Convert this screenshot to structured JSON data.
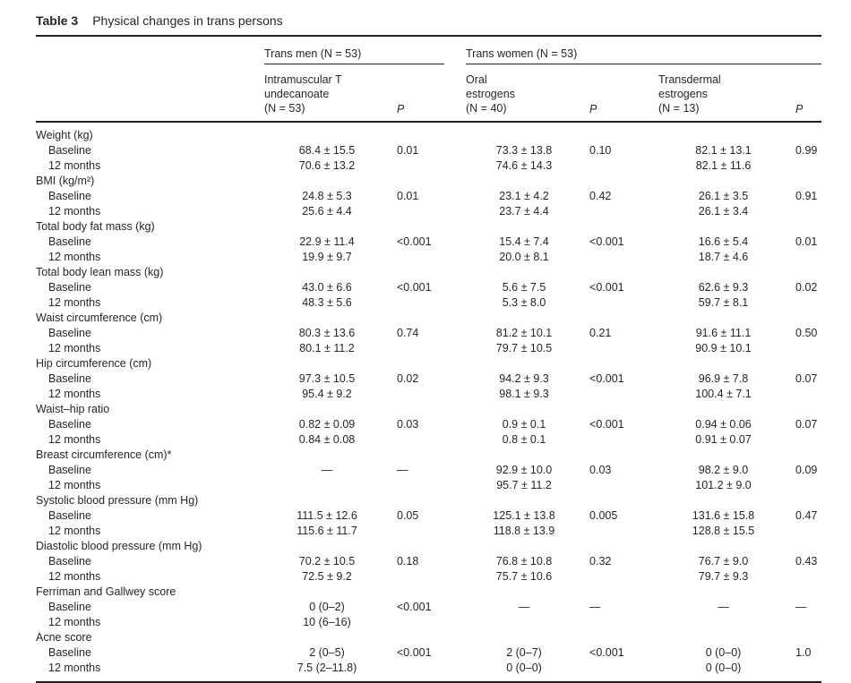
{
  "table": {
    "label": "Table 3",
    "title": "Physical changes in trans persons",
    "p_header": "P",
    "groups": [
      {
        "label": "Trans men (N = 53)"
      },
      {
        "label": "Trans women (N = 53)"
      }
    ],
    "column_headers": [
      "Intramuscular T\nundecanoate\n(N = 53)",
      "Oral\nestrogens\n(N = 40)",
      "Transdermal\nestrogens\n(N = 13)"
    ],
    "rows": [
      {
        "type": "category",
        "label": "Weight (kg)"
      },
      {
        "type": "data",
        "label": "Baseline",
        "cells": [
          "68.4 ± 15.5",
          "0.01",
          "73.3 ± 13.8",
          "0.10",
          "82.1 ± 13.1",
          "0.99"
        ]
      },
      {
        "type": "data",
        "label": "12 months",
        "cells": [
          "70.6 ± 13.2",
          "",
          "74.6 ± 14.3",
          "",
          "82.1 ± 11.6",
          ""
        ]
      },
      {
        "type": "category",
        "label": "BMI (kg/m²)"
      },
      {
        "type": "data",
        "label": "Baseline",
        "cells": [
          "24.8 ± 5.3",
          "0.01",
          "23.1 ± 4.2",
          "0.42",
          "26.1 ± 3.5",
          "0.91"
        ]
      },
      {
        "type": "data",
        "label": "12 months",
        "cells": [
          "25.6 ± 4.4",
          "",
          "23.7 ± 4.4",
          "",
          "26.1 ± 3.4",
          ""
        ]
      },
      {
        "type": "category",
        "label": "Total body fat mass (kg)"
      },
      {
        "type": "data",
        "label": "Baseline",
        "cells": [
          "22.9 ± 11.4",
          "<0.001",
          "15.4 ± 7.4",
          "<0.001",
          "16.6 ± 5.4",
          "0.01"
        ]
      },
      {
        "type": "data",
        "label": "12 months",
        "cells": [
          "19.9 ± 9.7",
          "",
          "20.0 ± 8.1",
          "",
          "18.7 ± 4.6",
          ""
        ]
      },
      {
        "type": "category",
        "label": "Total body lean mass (kg)"
      },
      {
        "type": "data",
        "label": "Baseline",
        "cells": [
          "43.0 ± 6.6",
          "<0.001",
          "5.6 ± 7.5",
          "<0.001",
          "62.6 ± 9.3",
          "0.02"
        ]
      },
      {
        "type": "data",
        "label": "12 months",
        "cells": [
          "48.3 ± 5.6",
          "",
          "5.3 ± 8.0",
          "",
          "59.7 ± 8.1",
          ""
        ]
      },
      {
        "type": "category",
        "label": "Waist circumference (cm)"
      },
      {
        "type": "data",
        "label": "Baseline",
        "cells": [
          "80.3 ± 13.6",
          "0.74",
          "81.2 ± 10.1",
          "0.21",
          "91.6 ± 11.1",
          "0.50"
        ]
      },
      {
        "type": "data",
        "label": "12 months",
        "cells": [
          "80.1 ± 11.2",
          "",
          "79.7 ± 10.5",
          "",
          "90.9 ± 10.1",
          ""
        ]
      },
      {
        "type": "category",
        "label": "Hip circumference (cm)"
      },
      {
        "type": "data",
        "label": "Baseline",
        "cells": [
          "97.3 ± 10.5",
          "0.02",
          "94.2 ± 9.3",
          "<0.001",
          "96.9 ± 7.8",
          "0.07"
        ]
      },
      {
        "type": "data",
        "label": "12 months",
        "cells": [
          "95.4 ± 9.2",
          "",
          "98.1 ± 9.3",
          "",
          "100.4 ± 7.1",
          ""
        ]
      },
      {
        "type": "category",
        "label": "Waist–hip ratio"
      },
      {
        "type": "data",
        "label": "Baseline",
        "cells": [
          "0.82 ± 0.09",
          "0.03",
          "0.9 ± 0.1",
          "<0.001",
          "0.94 ± 0.06",
          "0.07"
        ]
      },
      {
        "type": "data",
        "label": "12 months",
        "cells": [
          "0.84 ± 0.08",
          "",
          "0.8 ± 0.1",
          "",
          "0.91 ± 0.07",
          ""
        ]
      },
      {
        "type": "category",
        "label": "Breast circumference (cm)*"
      },
      {
        "type": "data",
        "label": "Baseline",
        "cells": [
          "—",
          "—",
          "92.9 ± 10.0",
          "0.03",
          "98.2 ± 9.0",
          "0.09"
        ]
      },
      {
        "type": "data",
        "label": "12 months",
        "cells": [
          "",
          "",
          "95.7 ± 11.2",
          "",
          "101.2 ± 9.0",
          ""
        ]
      },
      {
        "type": "category",
        "label": "Systolic blood pressure (mm Hg)"
      },
      {
        "type": "data",
        "label": "Baseline",
        "cells": [
          "111.5 ± 12.6",
          "0.05",
          "125.1 ± 13.8",
          "0.005",
          "131.6 ± 15.8",
          "0.47"
        ]
      },
      {
        "type": "data",
        "label": "12 months",
        "cells": [
          "115.6 ± 11.7",
          "",
          "118.8 ± 13.9",
          "",
          "128.8 ± 15.5",
          ""
        ]
      },
      {
        "type": "category",
        "label": "Diastolic blood pressure (mm Hg)"
      },
      {
        "type": "data",
        "label": "Baseline",
        "cells": [
          "70.2 ± 10.5",
          "0.18",
          "76.8 ± 10.8",
          "0.32",
          "76.7 ± 9.0",
          "0.43"
        ]
      },
      {
        "type": "data",
        "label": "12 months",
        "cells": [
          "72.5 ± 9.2",
          "",
          "75.7 ± 10.6",
          "",
          "79.7 ± 9.3",
          ""
        ]
      },
      {
        "type": "category",
        "label": "Ferriman and Gallwey score"
      },
      {
        "type": "data",
        "label": "Baseline",
        "cells": [
          "0 (0–2)",
          "<0.001",
          "—",
          "—",
          "—",
          "—"
        ]
      },
      {
        "type": "data",
        "label": "12 months",
        "cells": [
          "10 (6–16)",
          "",
          "",
          "",
          "",
          ""
        ]
      },
      {
        "type": "category",
        "label": "Acne score"
      },
      {
        "type": "data",
        "label": "Baseline",
        "cells": [
          "2 (0–5)",
          "<0.001",
          "2 (0–7)",
          "<0.001",
          "0 (0–0)",
          "1.0"
        ]
      },
      {
        "type": "data",
        "label": "12 months",
        "cells": [
          "7.5 (2–11.8)",
          "",
          "0 (0–0)",
          "",
          "0 (0–0)",
          ""
        ]
      }
    ]
  }
}
